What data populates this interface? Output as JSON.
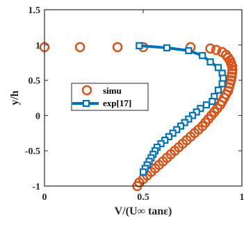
{
  "chart_data": {
    "type": "scatter",
    "xlabel": "V/(U∞ tanε)",
    "ylabel": "y/h",
    "xlim": [
      0,
      1
    ],
    "ylim": [
      -1,
      1.5
    ],
    "xticks": [
      "0",
      "0.5",
      "1"
    ],
    "yticks": [
      "-1",
      "-0.5",
      "0",
      "0.5",
      "1",
      "1.5"
    ],
    "grid": false,
    "legend_position": "center-left",
    "series": [
      {
        "name": "simu",
        "marker": "circle",
        "color": "#D95319",
        "points": [
          {
            "x": 0.0,
            "y": 0.97
          },
          {
            "x": 0.18,
            "y": 0.97
          },
          {
            "x": 0.37,
            "y": 0.97
          },
          {
            "x": 0.5,
            "y": 0.97
          },
          {
            "x": 0.74,
            "y": 0.97
          },
          {
            "x": 0.84,
            "y": 0.95
          },
          {
            "x": 0.87,
            "y": 0.93
          },
          {
            "x": 0.9,
            "y": 0.9
          },
          {
            "x": 0.92,
            "y": 0.86
          },
          {
            "x": 0.93,
            "y": 0.82
          },
          {
            "x": 0.94,
            "y": 0.78
          },
          {
            "x": 0.945,
            "y": 0.74
          },
          {
            "x": 0.95,
            "y": 0.7
          },
          {
            "x": 0.952,
            "y": 0.65
          },
          {
            "x": 0.95,
            "y": 0.6
          },
          {
            "x": 0.948,
            "y": 0.55
          },
          {
            "x": 0.945,
            "y": 0.5
          },
          {
            "x": 0.94,
            "y": 0.45
          },
          {
            "x": 0.935,
            "y": 0.4
          },
          {
            "x": 0.93,
            "y": 0.35
          },
          {
            "x": 0.92,
            "y": 0.3
          },
          {
            "x": 0.91,
            "y": 0.25
          },
          {
            "x": 0.9,
            "y": 0.2
          },
          {
            "x": 0.89,
            "y": 0.15
          },
          {
            "x": 0.875,
            "y": 0.1
          },
          {
            "x": 0.86,
            "y": 0.05
          },
          {
            "x": 0.845,
            "y": 0.0
          },
          {
            "x": 0.83,
            "y": -0.05
          },
          {
            "x": 0.815,
            "y": -0.1
          },
          {
            "x": 0.8,
            "y": -0.15
          },
          {
            "x": 0.78,
            "y": -0.2
          },
          {
            "x": 0.76,
            "y": -0.25
          },
          {
            "x": 0.74,
            "y": -0.3
          },
          {
            "x": 0.72,
            "y": -0.35
          },
          {
            "x": 0.7,
            "y": -0.4
          },
          {
            "x": 0.68,
            "y": -0.45
          },
          {
            "x": 0.66,
            "y": -0.5
          },
          {
            "x": 0.64,
            "y": -0.55
          },
          {
            "x": 0.62,
            "y": -0.6
          },
          {
            "x": 0.6,
            "y": -0.65
          },
          {
            "x": 0.58,
            "y": -0.7
          },
          {
            "x": 0.56,
            "y": -0.75
          },
          {
            "x": 0.54,
            "y": -0.8
          },
          {
            "x": 0.52,
            "y": -0.85
          },
          {
            "x": 0.5,
            "y": -0.9
          },
          {
            "x": 0.48,
            "y": -0.95
          },
          {
            "x": 0.47,
            "y": -1.0
          }
        ]
      },
      {
        "name": "exp[17]",
        "marker": "square",
        "color": "#0072BD",
        "points": [
          {
            "x": 0.48,
            "y": 0.99
          },
          {
            "x": 0.62,
            "y": 0.96
          },
          {
            "x": 0.73,
            "y": 0.92
          },
          {
            "x": 0.8,
            "y": 0.85
          },
          {
            "x": 0.84,
            "y": 0.76
          },
          {
            "x": 0.88,
            "y": 0.68
          },
          {
            "x": 0.9,
            "y": 0.6
          },
          {
            "x": 0.905,
            "y": 0.53
          },
          {
            "x": 0.9,
            "y": 0.45
          },
          {
            "x": 0.88,
            "y": 0.36
          },
          {
            "x": 0.86,
            "y": 0.27
          },
          {
            "x": 0.85,
            "y": 0.2
          },
          {
            "x": 0.82,
            "y": 0.15
          },
          {
            "x": 0.79,
            "y": 0.1
          },
          {
            "x": 0.77,
            "y": 0.05
          },
          {
            "x": 0.75,
            "y": 0.0
          },
          {
            "x": 0.73,
            "y": -0.05
          },
          {
            "x": 0.71,
            "y": -0.1
          },
          {
            "x": 0.69,
            "y": -0.15
          },
          {
            "x": 0.67,
            "y": -0.2
          },
          {
            "x": 0.65,
            "y": -0.25
          },
          {
            "x": 0.63,
            "y": -0.3
          },
          {
            "x": 0.61,
            "y": -0.35
          },
          {
            "x": 0.59,
            "y": -0.4
          },
          {
            "x": 0.57,
            "y": -0.45
          },
          {
            "x": 0.56,
            "y": -0.5
          },
          {
            "x": 0.55,
            "y": -0.55
          },
          {
            "x": 0.54,
            "y": -0.6
          },
          {
            "x": 0.53,
            "y": -0.65
          },
          {
            "x": 0.52,
            "y": -0.7
          },
          {
            "x": 0.51,
            "y": -0.75
          },
          {
            "x": 0.5,
            "y": -0.8
          }
        ]
      }
    ]
  }
}
